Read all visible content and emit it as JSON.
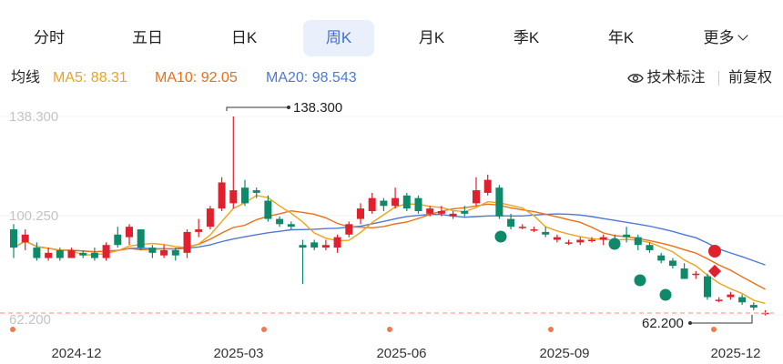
{
  "tabs": [
    {
      "label": "分时",
      "active": false
    },
    {
      "label": "五日",
      "active": false
    },
    {
      "label": "日K",
      "active": false
    },
    {
      "label": "周K",
      "active": true
    },
    {
      "label": "月K",
      "active": false
    },
    {
      "label": "季K",
      "active": false
    },
    {
      "label": "年K",
      "active": false
    }
  ],
  "more_label": "更多",
  "ma": {
    "title": "均线",
    "ma5": "MA5: 88.31",
    "ma10": "MA10: 92.05",
    "ma20": "MA20: 98.543"
  },
  "tools": {
    "annotate": "技术标注",
    "adjust": "前复权"
  },
  "colors": {
    "up": "#e0202c",
    "down": "#0e8a6a",
    "ma5": "#f1a21b",
    "ma10": "#ef6f17",
    "ma20": "#4f79d6",
    "accent": "#3f6fd8",
    "dashed": "#f4a99c",
    "marker": "#f07a50"
  },
  "chart_data": {
    "type": "candlestick",
    "y_axis_labels": [
      "138.300",
      "100.250",
      "62.200"
    ],
    "ylim": [
      62.2,
      138.3
    ],
    "x_ticks": [
      "2024-12",
      "2025-03",
      "2025-06",
      "2025-09",
      "2025-12"
    ],
    "max_annotation": "138.300",
    "min_annotation": "62.200",
    "candles": [
      [
        95,
        88,
        84,
        97
      ],
      [
        90,
        93,
        87,
        95
      ],
      [
        88,
        84,
        83,
        90
      ],
      [
        84,
        86,
        83,
        88
      ],
      [
        87,
        84,
        83,
        88
      ],
      [
        84,
        87,
        84,
        88
      ],
      [
        86,
        85,
        84,
        87
      ],
      [
        86,
        84,
        83,
        88
      ],
      [
        84,
        89,
        83,
        90
      ],
      [
        93,
        89,
        88,
        96
      ],
      [
        92,
        96,
        89,
        97
      ],
      [
        95,
        88,
        87,
        95
      ],
      [
        88,
        86,
        84,
        89
      ],
      [
        85,
        87,
        84,
        89
      ],
      [
        87,
        85,
        83,
        88
      ],
      [
        86,
        94,
        84,
        95
      ],
      [
        94,
        95,
        92,
        99
      ],
      [
        96,
        103,
        95,
        104
      ],
      [
        103,
        113,
        102,
        115
      ],
      [
        105,
        110,
        103,
        138.3
      ],
      [
        111,
        105,
        104,
        114
      ],
      [
        110,
        109,
        107,
        111
      ],
      [
        106,
        99,
        98,
        108
      ],
      [
        99,
        97,
        96,
        100
      ],
      [
        97,
        96,
        95,
        98
      ],
      [
        89,
        88,
        74,
        91
      ],
      [
        90,
        88,
        87,
        91
      ],
      [
        88,
        89,
        87,
        91
      ],
      [
        88,
        92,
        86,
        93
      ],
      [
        93,
        97,
        92,
        98
      ],
      [
        99,
        103,
        97,
        105
      ],
      [
        102,
        107,
        101,
        109
      ],
      [
        106,
        104,
        102,
        107
      ],
      [
        104,
        107,
        103,
        111
      ],
      [
        108,
        103,
        102,
        109
      ],
      [
        107,
        102,
        101,
        108
      ],
      [
        101,
        103,
        100,
        104
      ],
      [
        101,
        102,
        100,
        104
      ],
      [
        100,
        101,
        99,
        102
      ],
      [
        102,
        101,
        100,
        104
      ],
      [
        105,
        110,
        104,
        115
      ],
      [
        109,
        114,
        108,
        116
      ],
      [
        111,
        100,
        99,
        112
      ],
      [
        99,
        96,
        95,
        101
      ],
      [
        96,
        96,
        95,
        97
      ],
      [
        95,
        95,
        94,
        96
      ],
      [
        94,
        93,
        92,
        96
      ],
      [
        91,
        92,
        90,
        93
      ],
      [
        90,
        90,
        89,
        91
      ],
      [
        90,
        91,
        89,
        92
      ],
      [
        91,
        91,
        90,
        92
      ],
      [
        91,
        92,
        89,
        93
      ],
      [
        91,
        90,
        88,
        93
      ],
      [
        93,
        92,
        90,
        96
      ],
      [
        92,
        89,
        87,
        93
      ],
      [
        89,
        87,
        86,
        90
      ],
      [
        85,
        83,
        82,
        86
      ],
      [
        83,
        81,
        80,
        84
      ],
      [
        80,
        76,
        76,
        82
      ],
      [
        78,
        78,
        76,
        79
      ],
      [
        77,
        69,
        68,
        78
      ],
      [
        68,
        68,
        67,
        69
      ],
      [
        69,
        70,
        68,
        71
      ],
      [
        69,
        67,
        66,
        70
      ],
      [
        66,
        65,
        64,
        67
      ],
      [
        63,
        63,
        62,
        64
      ]
    ]
  }
}
